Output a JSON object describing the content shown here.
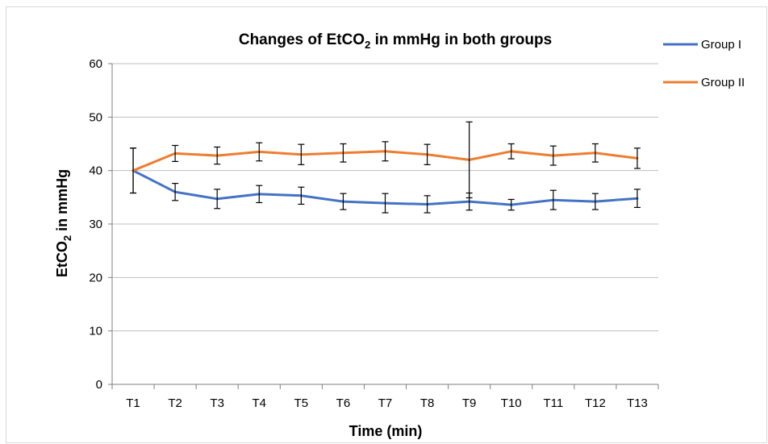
{
  "chart_data": {
    "type": "line",
    "title": "Changes of EtCO",
    "title_sub": "2",
    "title_suffix": " in mmHg in both groups",
    "xlabel": "Time (min)",
    "ylabel": "EtCO",
    "ylabel_sub": "2",
    "ylabel_suffix": " in mmHg",
    "ylim": [
      0,
      60
    ],
    "yticks": [
      0,
      10,
      20,
      30,
      40,
      50,
      60
    ],
    "grid": true,
    "legend_position": "top-right",
    "categories": [
      "T1",
      "T2",
      "T3",
      "T4",
      "T5",
      "T6",
      "T7",
      "T8",
      "T9",
      "T10",
      "T11",
      "T12",
      "T13"
    ],
    "series": [
      {
        "name": "Group I",
        "color": "#4472c4",
        "values": [
          40.0,
          36.0,
          34.7,
          35.6,
          35.3,
          34.2,
          33.9,
          33.7,
          34.2,
          33.6,
          34.5,
          34.2,
          34.8
        ],
        "errors": [
          4.2,
          1.6,
          1.8,
          1.6,
          1.6,
          1.5,
          1.8,
          1.6,
          1.6,
          1.0,
          1.8,
          1.5,
          1.7
        ]
      },
      {
        "name": "Group II",
        "color": "#ed7d31",
        "values": [
          40.0,
          43.2,
          42.8,
          43.5,
          43.0,
          43.3,
          43.6,
          43.0,
          42.0,
          43.6,
          42.8,
          43.3,
          42.3
        ],
        "errors": [
          4.2,
          1.5,
          1.6,
          1.7,
          1.9,
          1.7,
          1.8,
          1.9,
          7.1,
          1.4,
          1.8,
          1.7,
          1.9
        ]
      }
    ]
  }
}
